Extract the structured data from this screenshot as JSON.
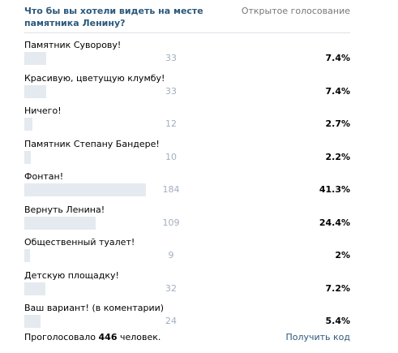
{
  "poll": {
    "question": "Что бы вы хотели видеть на месте памятника Ленину?",
    "type_label": "Открытое голосование",
    "options": [
      {
        "label": "Памятник Суворову!",
        "count": "33",
        "percent": "7.4%",
        "fraction": 0.074
      },
      {
        "label": "Красивую, цветущую клумбу!",
        "count": "33",
        "percent": "7.4%",
        "fraction": 0.074
      },
      {
        "label": "Ничего!",
        "count": "12",
        "percent": "2.7%",
        "fraction": 0.027
      },
      {
        "label": "Памятник Степану Бандере!",
        "count": "10",
        "percent": "2.2%",
        "fraction": 0.022
      },
      {
        "label": "Фонтан!",
        "count": "184",
        "percent": "41.3%",
        "fraction": 0.413
      },
      {
        "label": "Вернуть Ленина!",
        "count": "109",
        "percent": "24.4%",
        "fraction": 0.244
      },
      {
        "label": "Общественный туалет!",
        "count": "9",
        "percent": "2%",
        "fraction": 0.02
      },
      {
        "label": "Детскую площадку!",
        "count": "32",
        "percent": "7.2%",
        "fraction": 0.072
      },
      {
        "label": "Ваш вариант! (в коментарии)",
        "count": "24",
        "percent": "5.4%",
        "fraction": 0.054
      }
    ],
    "footer": {
      "total_prefix": "Проголосовало",
      "total_count": "446",
      "total_suffix": "человек.",
      "get_code_label": "Получить код"
    },
    "colors": {
      "bar_fill": "#e4eaf0",
      "count_text": "#a2afbe",
      "link": "#2b587a"
    }
  }
}
